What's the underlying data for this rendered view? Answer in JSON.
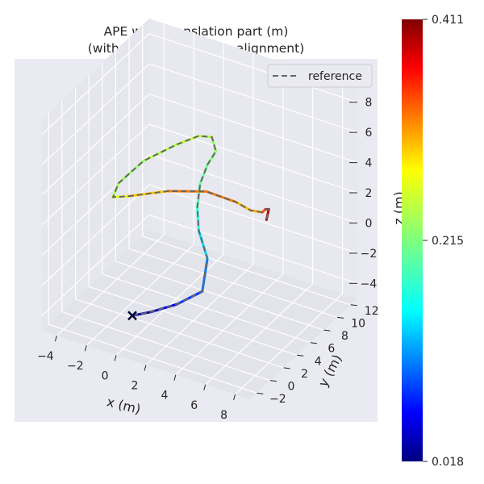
{
  "chart_data": {
    "type": "line",
    "projection": "3d",
    "title_lines": [
      "APE w.r.t. translation part (m)",
      "(with Sim(3) Umeyama alignment)"
    ],
    "xlabel": "x (m)",
    "ylabel": "y (m)",
    "zlabel": "z (m)",
    "xticks": [
      -4,
      -2,
      0,
      2,
      4,
      6,
      8
    ],
    "xtick_labels": [
      "−4",
      "−2",
      "0",
      "2",
      "4",
      "6",
      "8"
    ],
    "yticks": [
      -2,
      0,
      2,
      4,
      6,
      8,
      10,
      12
    ],
    "ytick_labels": [
      "−2",
      "0",
      "2",
      "4",
      "6",
      "8",
      "10",
      "12"
    ],
    "zticks": [
      -4,
      -2,
      0,
      2,
      4,
      6,
      8
    ],
    "ztick_labels": [
      "−4",
      "−2",
      "0",
      "2",
      "4",
      "6",
      "8"
    ],
    "xlim": [
      -5,
      9
    ],
    "ylim": [
      -3,
      13
    ],
    "zlim": [
      -5,
      9
    ],
    "grid": true,
    "legend": {
      "entries": [
        "reference"
      ],
      "placement": "top-right"
    },
    "colorbar": {
      "colormap": "jet",
      "min": 0.018,
      "mid": 0.215,
      "max": 0.411,
      "tick_labels": [
        "0.411",
        "0.215",
        "0.018"
      ]
    },
    "series": [
      {
        "name": "reference",
        "style": "dashed",
        "color": "#666666",
        "points": [
          [
            -0.5,
            0.5,
            -4.0
          ],
          [
            0.4,
            1.3,
            -3.8
          ],
          [
            1.6,
            2.5,
            -3.4
          ],
          [
            2.9,
            3.4,
            -2.5
          ],
          [
            2.7,
            4.6,
            -0.9
          ],
          [
            1.8,
            5.3,
            0.4
          ],
          [
            1.3,
            6.2,
            1.4
          ],
          [
            1.0,
            7.3,
            2.4
          ],
          [
            1.0,
            8.4,
            3.2
          ],
          [
            1.2,
            9.2,
            3.8
          ],
          [
            1.2,
            8.6,
            5.0
          ],
          [
            0.8,
            7.5,
            5.4
          ],
          [
            0.0,
            6.0,
            5.2
          ],
          [
            -1.5,
            4.4,
            4.3
          ],
          [
            -2.6,
            3.1,
            3.0
          ],
          [
            -2.7,
            2.5,
            2.3
          ],
          [
            -1.6,
            2.3,
            2.8
          ],
          [
            1.0,
            2.5,
            3.9
          ],
          [
            3.5,
            2.7,
            4.6
          ],
          [
            5.5,
            2.6,
            4.6
          ],
          [
            6.7,
            2.2,
            4.6
          ],
          [
            7.7,
            1.7,
            5.0
          ],
          [
            8.1,
            1.3,
            5.5
          ],
          [
            8.5,
            0.9,
            5.8
          ],
          [
            8.3,
            1.0,
            5.0
          ]
        ]
      },
      {
        "name": "",
        "style": "solid",
        "color_by_error": true,
        "points": [
          [
            -0.5,
            0.5,
            -4.0
          ],
          [
            0.4,
            1.3,
            -3.8
          ],
          [
            1.6,
            2.5,
            -3.4
          ],
          [
            2.9,
            3.4,
            -2.5
          ],
          [
            2.7,
            4.6,
            -0.9
          ],
          [
            1.8,
            5.3,
            0.4
          ],
          [
            1.3,
            6.2,
            1.4
          ],
          [
            1.0,
            7.3,
            2.4
          ],
          [
            1.0,
            8.4,
            3.2
          ],
          [
            1.2,
            9.2,
            3.8
          ],
          [
            1.2,
            8.6,
            5.0
          ],
          [
            0.8,
            7.5,
            5.4
          ],
          [
            0.0,
            6.0,
            5.2
          ],
          [
            -1.5,
            4.4,
            4.3
          ],
          [
            -2.6,
            3.1,
            3.0
          ],
          [
            -2.7,
            2.5,
            2.3
          ],
          [
            -1.6,
            2.3,
            2.8
          ],
          [
            1.0,
            2.5,
            3.9
          ],
          [
            3.5,
            2.7,
            4.6
          ],
          [
            5.5,
            2.6,
            4.6
          ],
          [
            6.7,
            2.2,
            4.6
          ],
          [
            7.7,
            1.7,
            5.0
          ],
          [
            8.1,
            1.3,
            5.5
          ],
          [
            8.5,
            0.9,
            5.8
          ],
          [
            8.3,
            1.0,
            5.0
          ]
        ],
        "errors": [
          0.02,
          0.04,
          0.07,
          0.1,
          0.13,
          0.17,
          0.19,
          0.2,
          0.21,
          0.22,
          0.23,
          0.24,
          0.24,
          0.23,
          0.22,
          0.24,
          0.27,
          0.3,
          0.33,
          0.3,
          0.28,
          0.31,
          0.35,
          0.38,
          0.41
        ]
      }
    ]
  }
}
